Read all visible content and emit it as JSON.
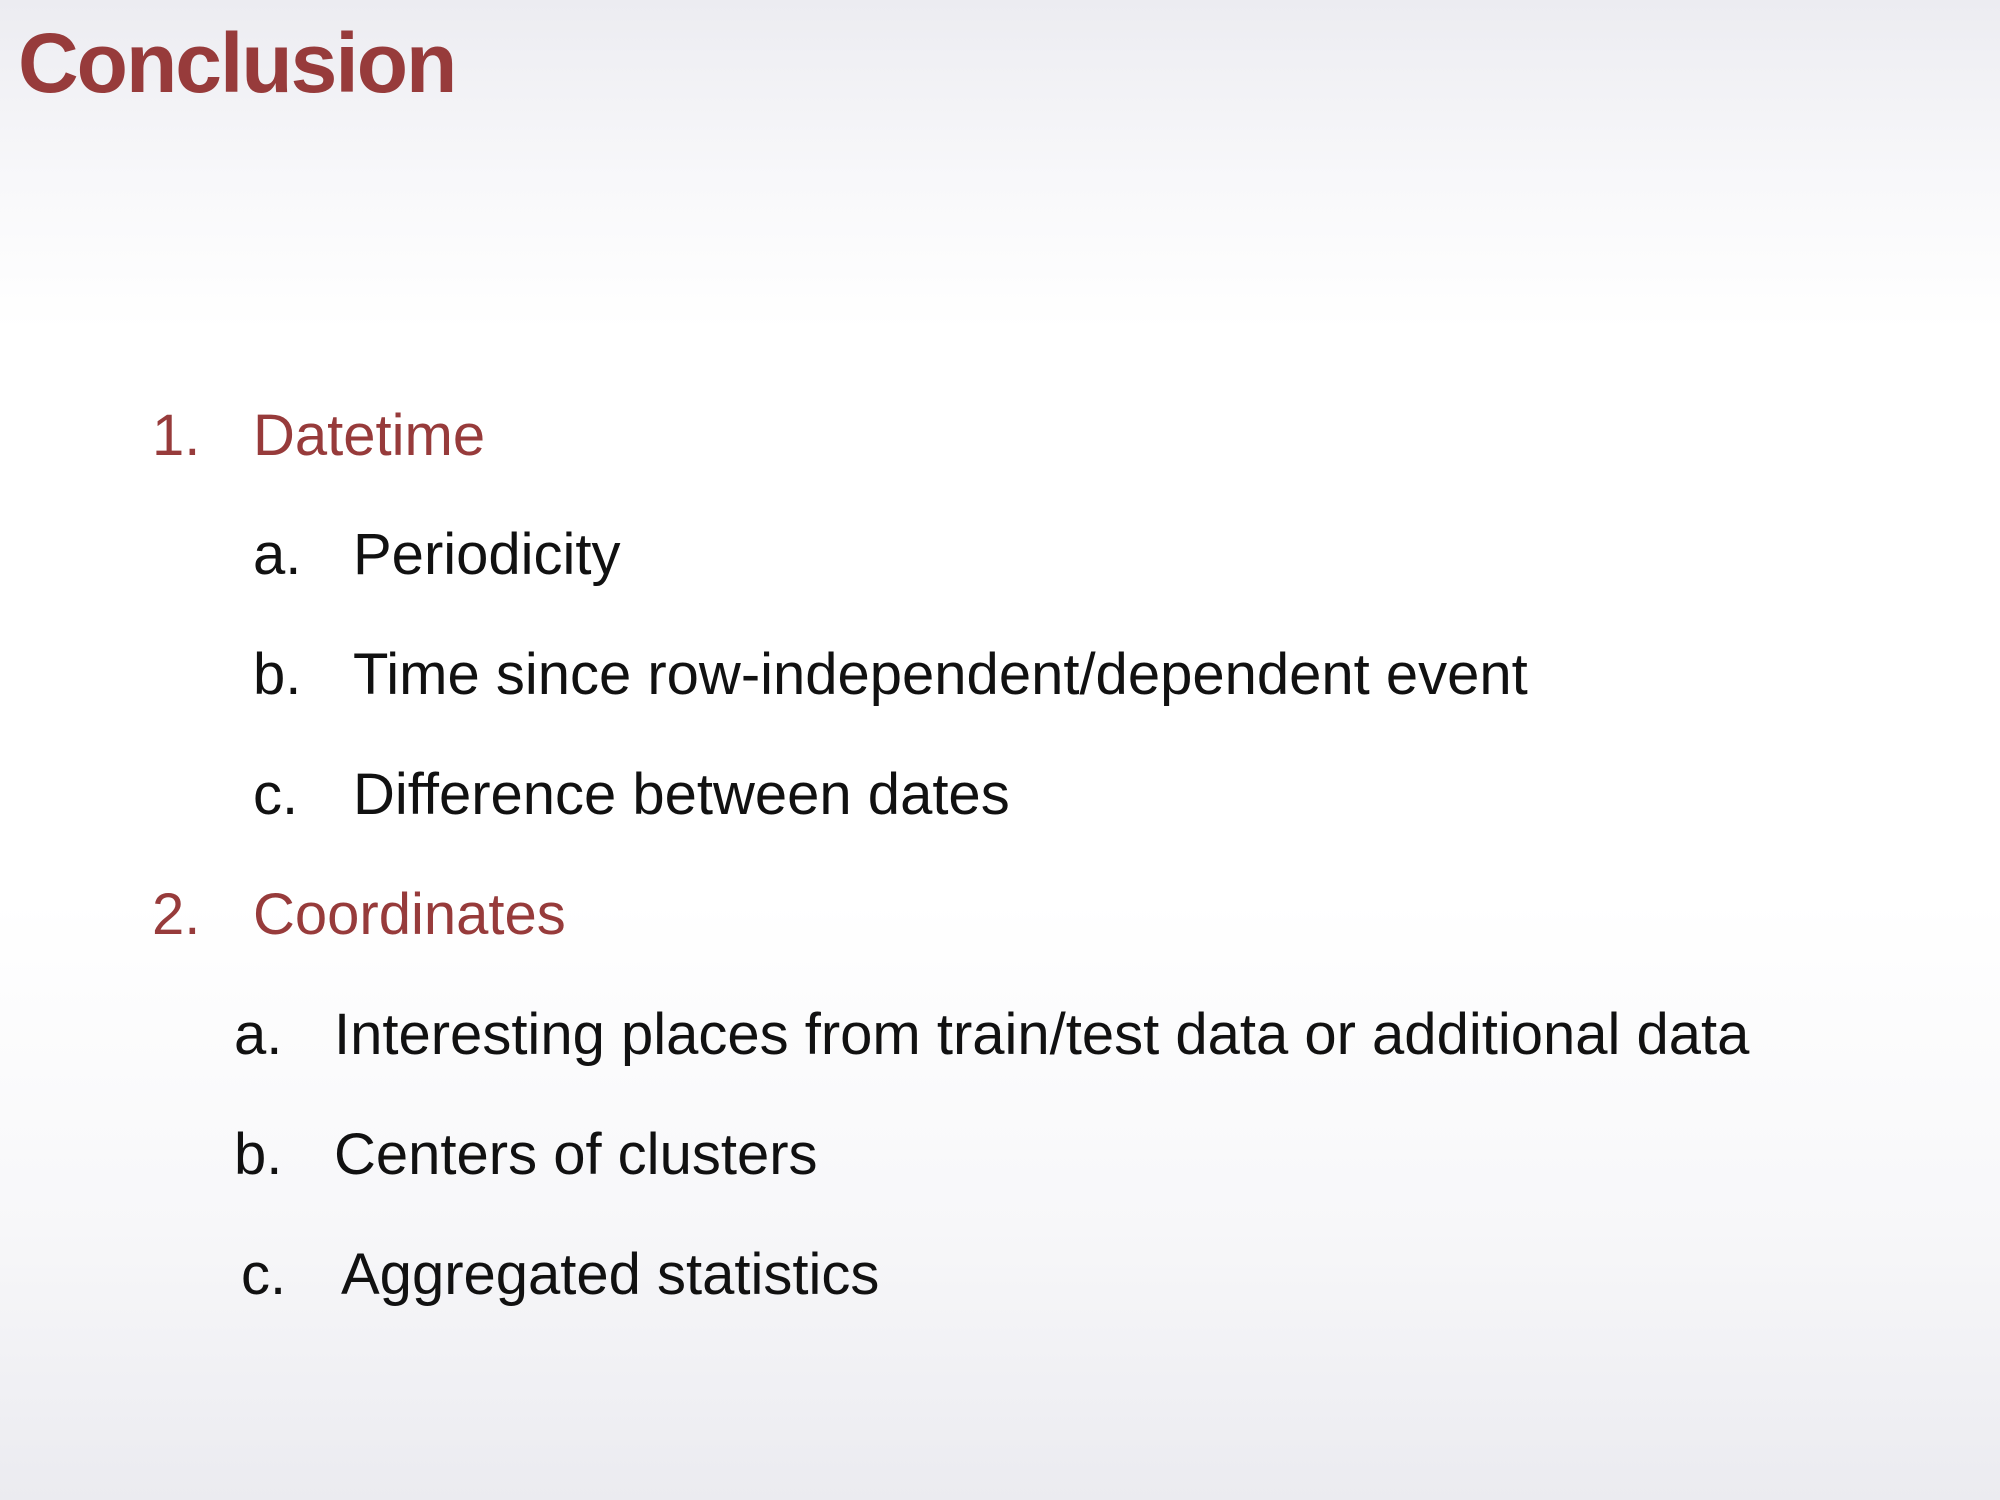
{
  "title": "Conclusion",
  "colors": {
    "title": "#973b3b",
    "heading": "#973b3b",
    "body": "#111111"
  },
  "outline": [
    {
      "marker": "1.",
      "label": "Datetime",
      "subitems": [
        {
          "marker": "a.",
          "label": "Periodicity"
        },
        {
          "marker": "b.",
          "label": "Time since row-independent/dependent event"
        },
        {
          "marker": "c.",
          "label": "Difference between dates"
        }
      ]
    },
    {
      "marker": "2.",
      "label": "Coordinates",
      "subitems": [
        {
          "marker": "a.",
          "label": "Interesting places from train/test data or additional data"
        },
        {
          "marker": "b.",
          "label": "Centers of clusters"
        },
        {
          "marker": "c.",
          "label": "Aggregated statistics"
        }
      ]
    }
  ]
}
